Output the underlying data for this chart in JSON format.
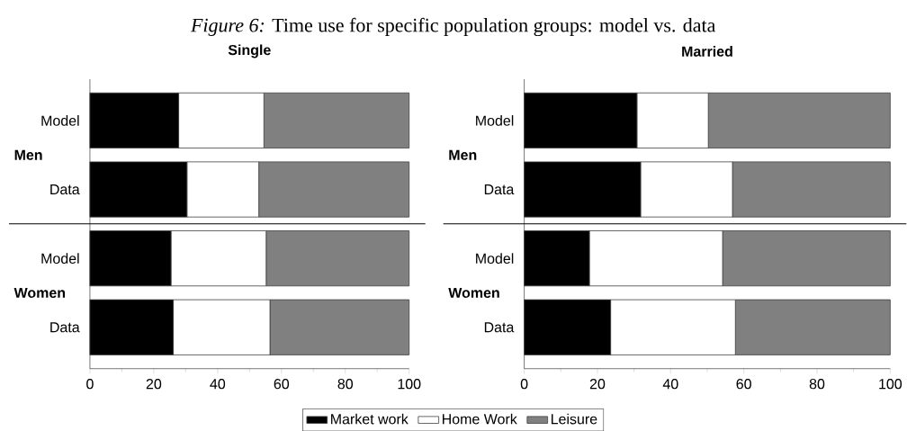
{
  "chart_data": [
    {
      "type": "bar",
      "orientation": "horizontal",
      "stacked": true,
      "title": "*Figure 6:* Time use for specific population groups: model vs. data",
      "subtitle": "Single",
      "categories": [
        "Model",
        "Data",
        "Model",
        "Data"
      ],
      "series": [
        {
          "name": "Market work",
          "color": "#000000",
          "values": [
            27.8,
            30.4,
            25.4,
            26.1
          ]
        },
        {
          "name": "Home Work",
          "color": "#ffffff",
          "values": [
            26.7,
            22.5,
            29.8,
            30.3
          ]
        },
        {
          "name": "Leisure",
          "color": "#808080",
          "values": [
            45.5,
            47.1,
            44.8,
            43.6
          ]
        }
      ],
      "xlim": [
        0,
        100
      ],
      "xticks": [
        0,
        20,
        40,
        60,
        80,
        100
      ],
      "legend": "bottom",
      "annotations": [
        "Men",
        "Women"
      ]
    },
    {
      "type": "bar",
      "orientation": "horizontal",
      "stacked": true,
      "title": "Married",
      "categories": [
        "Model",
        "Data",
        "Model",
        "Data"
      ],
      "series": [
        {
          "color": "#000000",
          "values": [
            30.8,
            31.8,
            17.8,
            23.6
          ]
        },
        {
          "color": "#ffffff",
          "values": [
            19.5,
            25.1,
            36.4,
            34.1
          ]
        },
        {
          "color": "#808080",
          "values": [
            49.7,
            43.1,
            45.8,
            42.3
          ]
        }
      ],
      "xlim": [
        0,
        100
      ],
      "xticks": [
        0,
        20,
        40,
        60,
        80,
        100
      ],
      "annotations": [
        "Men",
        "Women"
      ]
    }
  ]
}
